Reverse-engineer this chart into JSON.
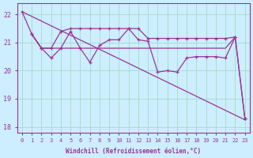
{
  "xlabel": "Windchill (Refroidissement éolien,°C)",
  "xlim": [
    -0.5,
    23.5
  ],
  "ylim": [
    17.8,
    22.4
  ],
  "yticks": [
    18,
    19,
    20,
    21,
    22
  ],
  "xticks": [
    0,
    1,
    2,
    3,
    4,
    5,
    6,
    7,
    8,
    9,
    10,
    11,
    12,
    13,
    14,
    15,
    16,
    17,
    18,
    19,
    20,
    21,
    22,
    23
  ],
  "bg_color": "#cceeff",
  "grid_color": "#aaddcc",
  "line_color": "#993399",
  "line1_x": [
    0,
    1,
    2,
    3,
    4,
    5,
    6,
    7,
    8,
    9,
    10,
    11,
    12,
    13,
    14,
    15,
    16,
    17,
    18,
    19,
    20,
    21,
    22,
    23
  ],
  "line1_y": [
    22.1,
    21.3,
    20.8,
    20.45,
    20.8,
    21.4,
    20.8,
    20.3,
    20.9,
    21.1,
    21.1,
    21.5,
    21.1,
    21.05,
    19.95,
    20.0,
    19.95,
    20.45,
    20.5,
    20.5,
    20.5,
    20.45,
    21.2,
    18.3
  ],
  "line2_x": [
    1,
    2,
    3,
    4,
    5,
    6,
    7,
    8,
    9,
    10,
    11,
    12,
    13,
    14,
    15,
    16,
    17,
    18,
    19,
    20,
    21,
    22
  ],
  "line2_y": [
    21.3,
    20.8,
    20.8,
    20.8,
    20.8,
    20.8,
    20.8,
    20.8,
    20.8,
    20.8,
    20.8,
    20.8,
    20.8,
    20.8,
    20.8,
    20.8,
    20.8,
    20.8,
    20.8,
    20.8,
    20.8,
    21.2
  ],
  "line3_x": [
    1,
    2,
    3,
    4,
    5,
    6,
    7,
    8,
    9,
    10,
    11,
    12,
    13,
    14,
    15,
    16,
    17,
    18,
    19,
    20,
    21,
    22,
    23
  ],
  "line3_y": [
    21.3,
    20.8,
    20.8,
    21.4,
    21.5,
    21.5,
    21.5,
    21.5,
    21.5,
    21.5,
    21.5,
    21.5,
    21.15,
    21.15,
    21.15,
    21.15,
    21.15,
    21.15,
    21.15,
    21.15,
    21.15,
    21.2,
    18.3
  ],
  "line4_x": [
    0,
    23
  ],
  "line4_y": [
    22.1,
    18.25
  ]
}
